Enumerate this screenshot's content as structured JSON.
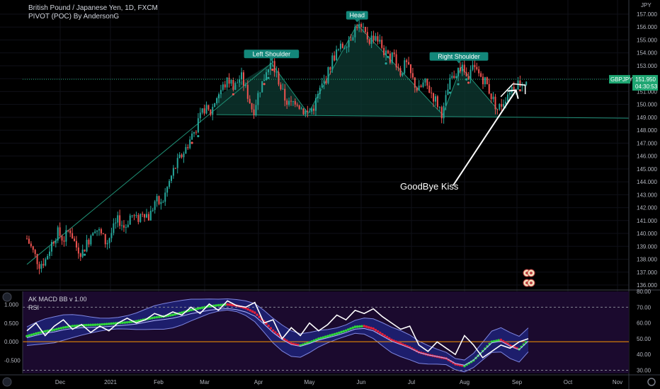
{
  "header": {
    "symbol_title": "British Pound / Japanese Yen, 1D, FXCM",
    "indicator": "PIVOT (POC) By AndersonG"
  },
  "colors": {
    "background": "#000000",
    "bull": "#26a69a",
    "bear": "#ef5350",
    "pattern_fill": "#0d3b33",
    "pattern_line": "#1f8f75",
    "price_tag": "#1ea672",
    "label_bg": "#13877a",
    "macd_panel": "#1b0a2e",
    "band": "#1f2fa0",
    "rsi_line": "#ffffff",
    "zero_line": "#ff9800",
    "macd_up": "#2fd33b",
    "macd_down": "#e0203a"
  },
  "chart_data": [
    {
      "type": "candlestick",
      "title": "British Pound / Japanese Yen, 1D, FXCM",
      "indicator": "PIVOT (POC) By AndersonG",
      "symbol": "GBPJPY",
      "last_price": "151.950",
      "countdown": "04:30:53",
      "y_unit": "JPY",
      "ylim": [
        136,
        157
      ],
      "y_ticks": [
        "157.000",
        "156.000",
        "155.000",
        "154.000",
        "153.000",
        "152.000",
        "151.000",
        "150.000",
        "149.000",
        "148.000",
        "147.000",
        "146.000",
        "145.000",
        "144.000",
        "143.000",
        "142.000",
        "141.000",
        "140.000",
        "139.000",
        "138.000",
        "137.000",
        "136.000"
      ],
      "x_ticks": [
        "Dec",
        "2021",
        "Feb",
        "Mar",
        "Apr",
        "May",
        "Jun",
        "Jul",
        "Aug",
        "Sep",
        "Oct",
        "Nov"
      ],
      "pattern_labels": [
        "Left Shoulder",
        "Head",
        "Right Shoulder"
      ],
      "annotation": "GoodBye Kiss",
      "price_path": [
        {
          "t": 0,
          "p": 139.6
        },
        {
          "t": 4,
          "p": 138.6
        },
        {
          "t": 8,
          "p": 137.6
        },
        {
          "t": 12,
          "p": 137.9
        },
        {
          "t": 16,
          "p": 139.2
        },
        {
          "t": 20,
          "p": 140.1
        },
        {
          "t": 24,
          "p": 139.5
        },
        {
          "t": 28,
          "p": 140.4
        },
        {
          "t": 32,
          "p": 139.0
        },
        {
          "t": 36,
          "p": 138.5
        },
        {
          "t": 40,
          "p": 139.4
        },
        {
          "t": 44,
          "p": 140.6
        },
        {
          "t": 48,
          "p": 140.0
        },
        {
          "t": 52,
          "p": 139.2
        },
        {
          "t": 56,
          "p": 140.2
        },
        {
          "t": 60,
          "p": 141.1
        },
        {
          "t": 64,
          "p": 140.4
        },
        {
          "t": 68,
          "p": 141.5
        },
        {
          "t": 72,
          "p": 141.0
        },
        {
          "t": 76,
          "p": 141.8
        },
        {
          "t": 80,
          "p": 141.2
        },
        {
          "t": 84,
          "p": 142.6
        },
        {
          "t": 88,
          "p": 142.2
        },
        {
          "t": 92,
          "p": 143.6
        },
        {
          "t": 96,
          "p": 144.9
        },
        {
          "t": 100,
          "p": 145.8
        },
        {
          "t": 104,
          "p": 146.6
        },
        {
          "t": 108,
          "p": 147.6
        },
        {
          "t": 112,
          "p": 148.5
        },
        {
          "t": 116,
          "p": 149.7
        },
        {
          "t": 120,
          "p": 149.3
        },
        {
          "t": 124,
          "p": 150.6
        },
        {
          "t": 128,
          "p": 151.3
        },
        {
          "t": 132,
          "p": 151.9
        },
        {
          "t": 136,
          "p": 151.4
        },
        {
          "t": 140,
          "p": 152.2
        },
        {
          "t": 144,
          "p": 150.9
        },
        {
          "t": 148,
          "p": 149.4
        },
        {
          "t": 152,
          "p": 151.1
        },
        {
          "t": 156,
          "p": 152.3
        },
        {
          "t": 160,
          "p": 153.2
        },
        {
          "t": 164,
          "p": 152.1
        },
        {
          "t": 168,
          "p": 150.6
        },
        {
          "t": 172,
          "p": 149.9
        },
        {
          "t": 176,
          "p": 150.4
        },
        {
          "t": 180,
          "p": 149.6
        },
        {
          "t": 184,
          "p": 149.3
        },
        {
          "t": 188,
          "p": 149.9
        },
        {
          "t": 192,
          "p": 151.2
        },
        {
          "t": 196,
          "p": 152.1
        },
        {
          "t": 200,
          "p": 153.6
        },
        {
          "t": 204,
          "p": 154.2
        },
        {
          "t": 208,
          "p": 154.7
        },
        {
          "t": 212,
          "p": 155.3
        },
        {
          "t": 216,
          "p": 156.2
        },
        {
          "t": 220,
          "p": 155.6
        },
        {
          "t": 224,
          "p": 155.0
        },
        {
          "t": 228,
          "p": 155.4
        },
        {
          "t": 232,
          "p": 154.5
        },
        {
          "t": 236,
          "p": 153.5
        },
        {
          "t": 240,
          "p": 153.9
        },
        {
          "t": 244,
          "p": 152.4
        },
        {
          "t": 248,
          "p": 153.2
        },
        {
          "t": 252,
          "p": 152.0
        },
        {
          "t": 256,
          "p": 151.0
        },
        {
          "t": 260,
          "p": 151.7
        },
        {
          "t": 264,
          "p": 151.0
        },
        {
          "t": 268,
          "p": 150.2
        },
        {
          "t": 272,
          "p": 149.2
        },
        {
          "t": 276,
          "p": 151.5
        },
        {
          "t": 280,
          "p": 152.4
        },
        {
          "t": 284,
          "p": 152.9
        },
        {
          "t": 288,
          "p": 152.0
        },
        {
          "t": 292,
          "p": 152.8
        },
        {
          "t": 296,
          "p": 152.3
        },
        {
          "t": 300,
          "p": 151.8
        },
        {
          "t": 304,
          "p": 150.6
        },
        {
          "t": 308,
          "p": 149.6
        },
        {
          "t": 312,
          "p": 150.3
        },
        {
          "t": 316,
          "p": 151.2
        },
        {
          "t": 320,
          "p": 151.6
        },
        {
          "t": 324,
          "p": 151.8
        },
        {
          "t": 328,
          "p": 152.0
        }
      ]
    },
    {
      "type": "line",
      "title": "AK MACD BB v 1.00",
      "indicator_2": "RSI",
      "left_ticks": [
        "1.000",
        "0.500",
        "0.000",
        "-0.500"
      ],
      "left_tick_values": [
        1.0,
        0.5,
        0.0,
        -0.5
      ],
      "left_ylim": [
        -0.85,
        1.35
      ],
      "right_ticks": [
        "80.00",
        "70.00",
        "60.00",
        "50.00",
        "40.00",
        "30.00"
      ],
      "right_tick_values": [
        80,
        70,
        60,
        50,
        40,
        30
      ],
      "right_ylim": [
        28,
        80
      ],
      "rsi_guides": [
        70,
        30
      ],
      "zero_line": 0.0,
      "series": [
        {
          "name": "RSI",
          "scale": "right",
          "x": [
            0,
            6,
            12,
            18,
            24,
            30,
            36,
            42,
            48,
            54,
            60,
            66,
            72,
            78,
            84,
            90,
            96,
            102,
            108,
            114,
            120,
            126,
            132,
            138,
            144,
            150,
            156,
            162,
            168,
            174,
            180,
            186,
            192,
            198,
            204,
            210,
            216,
            222,
            228,
            234,
            240,
            246,
            252,
            258,
            264,
            270,
            276,
            282,
            288,
            294,
            300,
            306,
            312,
            318,
            324,
            330
          ],
          "values": [
            55,
            60,
            52,
            58,
            62,
            56,
            59,
            54,
            58,
            55,
            60,
            63,
            60,
            62,
            66,
            64,
            67,
            65,
            70,
            66,
            72,
            68,
            74,
            71,
            70,
            73,
            60,
            62,
            50,
            57,
            52,
            60,
            55,
            59,
            65,
            62,
            68,
            66,
            69,
            64,
            60,
            56,
            58,
            46,
            42,
            48,
            44,
            40,
            52,
            46,
            38,
            42,
            46,
            44,
            48,
            50
          ]
        },
        {
          "name": "MACD",
          "scale": "left",
          "x": [
            0,
            6,
            12,
            18,
            24,
            30,
            36,
            42,
            48,
            54,
            60,
            66,
            72,
            78,
            84,
            90,
            96,
            102,
            108,
            114,
            120,
            126,
            132,
            138,
            144,
            150,
            156,
            162,
            168,
            174,
            180,
            186,
            192,
            198,
            204,
            210,
            216,
            222,
            228,
            234,
            240,
            246,
            252,
            258,
            264,
            270,
            276,
            282,
            288,
            294,
            300,
            306,
            312,
            318,
            324,
            330
          ],
          "values": [
            0.15,
            0.22,
            0.28,
            0.32,
            0.38,
            0.42,
            0.44,
            0.45,
            0.46,
            0.48,
            0.5,
            0.52,
            0.55,
            0.6,
            0.65,
            0.68,
            0.72,
            0.78,
            0.85,
            0.9,
            0.95,
            0.98,
            1.0,
            0.97,
            0.9,
            0.78,
            0.55,
            0.3,
            0.1,
            -0.05,
            -0.1,
            -0.02,
            0.08,
            0.15,
            0.22,
            0.3,
            0.4,
            0.42,
            0.35,
            0.2,
            0.05,
            -0.05,
            -0.15,
            -0.28,
            -0.35,
            -0.4,
            -0.45,
            -0.6,
            -0.65,
            -0.5,
            -0.25,
            0.0,
            0.05,
            -0.1,
            -0.2,
            0.05
          ]
        }
      ]
    }
  ]
}
